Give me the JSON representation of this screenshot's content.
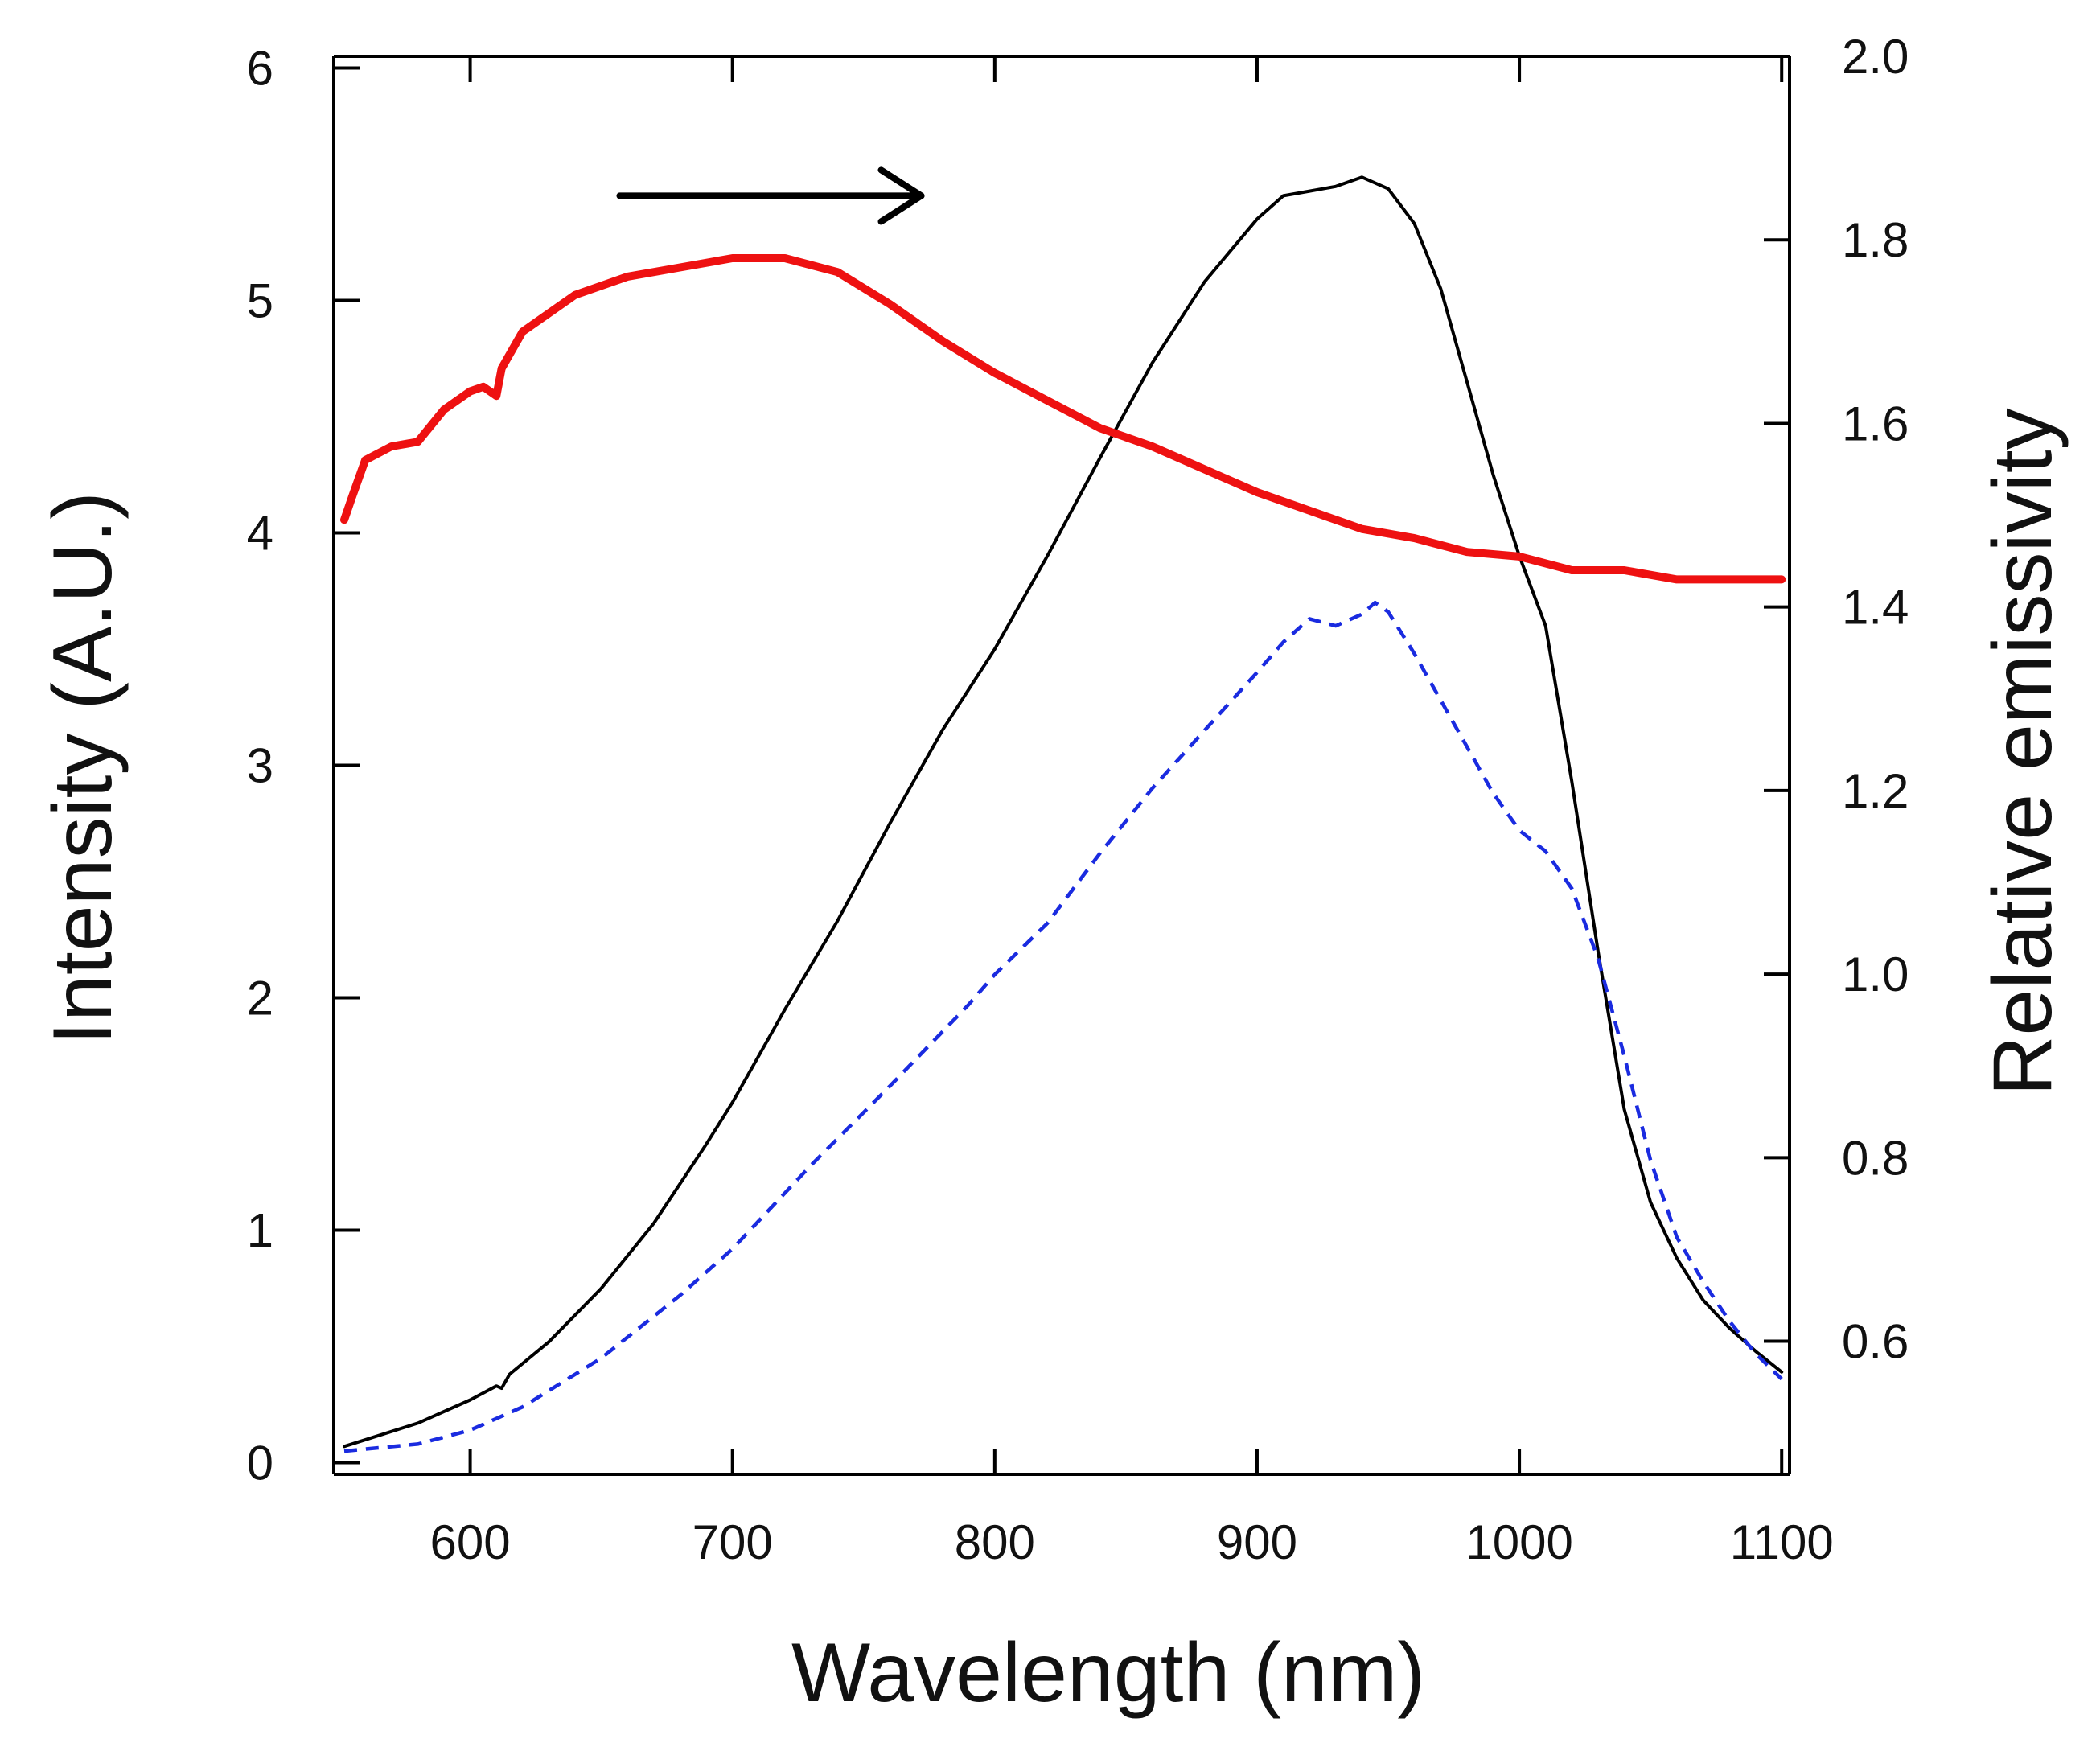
{
  "chart_data": {
    "type": "line",
    "title": "",
    "xlabel": "Wavelength (nm)",
    "ylabel_left": "Intensity (A.U.)",
    "ylabel_right": "Relative emissivity",
    "xlim": [
      548,
      1103
    ],
    "ylim_left": [
      -0.05,
      6.05
    ],
    "ylim_right": [
      0.455,
      2.0
    ],
    "x_ticks": [
      "600",
      "700",
      "800",
      "900",
      "1000",
      "1100"
    ],
    "y_left_ticks": [
      "0",
      "1",
      "2",
      "3",
      "4",
      "5",
      "6"
    ],
    "y_right_ticks": [
      "0.6",
      "0.8",
      "1.0",
      "1.2",
      "1.4",
      "1.6",
      "1.8",
      "2.0"
    ],
    "grid": false,
    "annotations": [
      {
        "type": "arrow",
        "direction": "right",
        "from_x": 657,
        "to_x": 772,
        "y_left": 5.45,
        "color": "#000000",
        "meaning": "red curve refers to right axis"
      }
    ],
    "series": [
      {
        "name": "intensity_black",
        "axis": "left",
        "color": "#000000",
        "style": "solid",
        "x": [
          552,
          580,
          600,
          610,
          612,
          615,
          630,
          650,
          670,
          690,
          700,
          720,
          740,
          760,
          780,
          800,
          820,
          840,
          860,
          880,
          900,
          910,
          920,
          930,
          940,
          950,
          960,
          970,
          980,
          990,
          1000,
          1010,
          1020,
          1030,
          1040,
          1050,
          1060,
          1070,
          1080,
          1090,
          1100
        ],
        "values": [
          0.07,
          0.17,
          0.27,
          0.33,
          0.32,
          0.38,
          0.52,
          0.75,
          1.03,
          1.37,
          1.55,
          1.95,
          2.33,
          2.75,
          3.15,
          3.5,
          3.9,
          4.32,
          4.73,
          5.08,
          5.35,
          5.45,
          5.47,
          5.49,
          5.53,
          5.48,
          5.33,
          5.05,
          4.65,
          4.25,
          3.9,
          3.6,
          2.93,
          2.2,
          1.52,
          1.12,
          0.88,
          0.7,
          0.58,
          0.48,
          0.39
        ]
      },
      {
        "name": "intensity_blue_dashed",
        "axis": "left",
        "color": "#1a2be0",
        "style": "dashed",
        "x": [
          552,
          580,
          600,
          620,
          650,
          680,
          700,
          730,
          760,
          790,
          800,
          820,
          840,
          860,
          880,
          900,
          910,
          920,
          930,
          940,
          945,
          950,
          960,
          970,
          980,
          990,
          1000,
          1010,
          1020,
          1030,
          1040,
          1050,
          1060,
          1070,
          1080,
          1090,
          1100
        ],
        "values": [
          0.05,
          0.08,
          0.14,
          0.24,
          0.45,
          0.72,
          0.92,
          1.28,
          1.62,
          1.97,
          2.1,
          2.32,
          2.62,
          2.9,
          3.15,
          3.4,
          3.53,
          3.63,
          3.6,
          3.65,
          3.7,
          3.66,
          3.48,
          3.28,
          3.08,
          2.88,
          2.72,
          2.63,
          2.47,
          2.17,
          1.75,
          1.3,
          0.97,
          0.78,
          0.61,
          0.47,
          0.36
        ]
      },
      {
        "name": "relative_emissivity_red",
        "axis": "right",
        "color": "#ee1111",
        "style": "solid",
        "x": [
          552,
          555,
          560,
          570,
          580,
          590,
          600,
          605,
          610,
          612,
          620,
          640,
          660,
          680,
          700,
          720,
          740,
          760,
          780,
          800,
          820,
          840,
          860,
          880,
          900,
          920,
          940,
          960,
          980,
          1000,
          1020,
          1040,
          1060,
          1080,
          1100
        ],
        "values": [
          1.495,
          1.52,
          1.56,
          1.575,
          1.58,
          1.615,
          1.635,
          1.64,
          1.63,
          1.66,
          1.7,
          1.74,
          1.76,
          1.77,
          1.78,
          1.78,
          1.765,
          1.73,
          1.69,
          1.655,
          1.625,
          1.595,
          1.575,
          1.55,
          1.525,
          1.505,
          1.485,
          1.475,
          1.46,
          1.455,
          1.44,
          1.44,
          1.43,
          1.43,
          1.43
        ]
      }
    ]
  }
}
